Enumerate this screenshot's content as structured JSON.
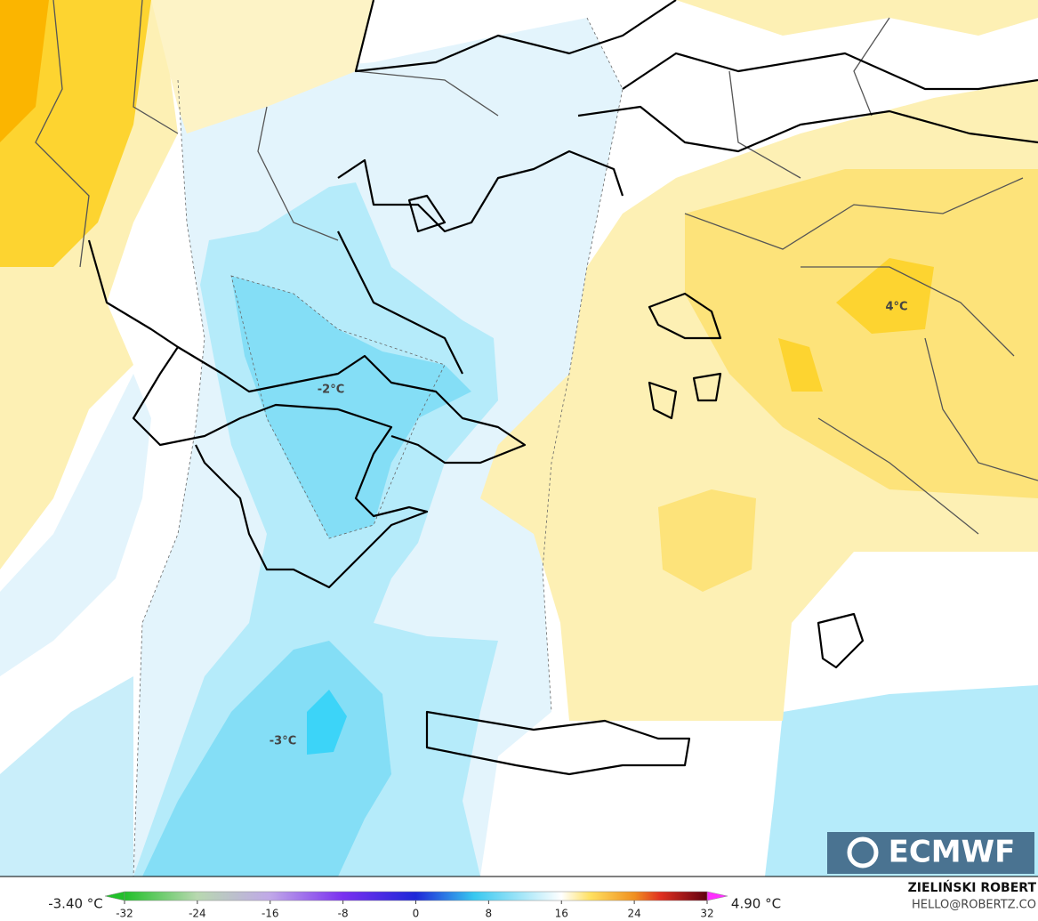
{
  "map": {
    "contour_labels": [
      "4°C",
      "-2°C",
      "-3°C"
    ],
    "logo": "ECMWF",
    "credit": {
      "name": "ZIELIŃSKI ROBERT",
      "contact": "HELLO@ROBERTZ.CO"
    },
    "colorbar": {
      "min_label": "-3.40 °C",
      "max_label": "4.90 °C",
      "range": [
        -32,
        32
      ],
      "ticks": [
        -32,
        -24,
        -16,
        -8,
        0,
        8,
        16,
        24,
        32
      ]
    }
  }
}
